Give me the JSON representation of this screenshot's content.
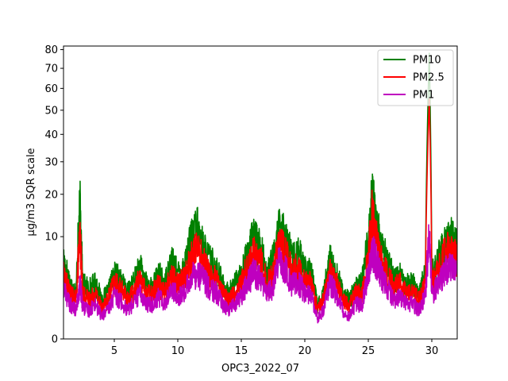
{
  "chart_data": {
    "type": "line",
    "xlabel": "OPC3_2022_07",
    "ylabel": "µg/m3 SQR scale",
    "y_scale": "sqrt",
    "xlim": [
      1,
      32
    ],
    "ylim": [
      0,
      82
    ],
    "x_ticks": [
      5,
      10,
      15,
      20,
      25,
      30
    ],
    "y_ticks": [
      0,
      10,
      20,
      30,
      40,
      50,
      60,
      70,
      80
    ],
    "legend_position": "top-right",
    "series": [
      {
        "name": "PM10",
        "color": "#008000",
        "x": [
          1.0,
          1.5,
          2.0,
          2.3,
          2.5,
          3.0,
          3.5,
          4.0,
          4.5,
          5.0,
          5.5,
          6.0,
          6.5,
          7.0,
          7.5,
          8.0,
          8.5,
          9.0,
          9.5,
          10.0,
          10.5,
          11.0,
          11.5,
          12.0,
          12.5,
          13.0,
          13.5,
          14.0,
          14.5,
          15.0,
          15.5,
          16.0,
          16.5,
          17.0,
          17.5,
          18.0,
          18.5,
          19.0,
          19.5,
          20.0,
          20.5,
          21.0,
          21.5,
          22.0,
          22.5,
          23.0,
          23.5,
          24.0,
          24.5,
          25.0,
          25.3,
          25.6,
          26.0,
          26.5,
          27.0,
          27.5,
          28.0,
          28.5,
          29.0,
          29.5,
          29.8,
          30.0,
          30.5,
          31.0,
          31.5,
          32.0
        ],
        "values": [
          6,
          3,
          2,
          17,
          3,
          2.5,
          3,
          1.5,
          2,
          4,
          3.5,
          2,
          3,
          5,
          3,
          2.5,
          4,
          3,
          6,
          4,
          5,
          9,
          12,
          8,
          6,
          5,
          3,
          2,
          3,
          4,
          7,
          10,
          8,
          4,
          6,
          12,
          10,
          6,
          7,
          5,
          4,
          1,
          2,
          6,
          4,
          2,
          1.5,
          2.5,
          3,
          9,
          19,
          15,
          8,
          6,
          3.5,
          4,
          3,
          3,
          2,
          4,
          78,
          4,
          6,
          9,
          10,
          8
        ]
      },
      {
        "name": "PM2.5",
        "color": "#ff0000",
        "x": [
          1.0,
          1.5,
          2.0,
          2.3,
          2.5,
          3.0,
          3.5,
          4.0,
          4.5,
          5.0,
          5.5,
          6.0,
          6.5,
          7.0,
          7.5,
          8.0,
          8.5,
          9.0,
          9.5,
          10.0,
          10.5,
          11.0,
          11.5,
          12.0,
          12.5,
          13.0,
          13.5,
          14.0,
          14.5,
          15.0,
          15.5,
          16.0,
          16.5,
          17.0,
          17.5,
          18.0,
          18.5,
          19.0,
          19.5,
          20.0,
          20.5,
          21.0,
          21.5,
          22.0,
          22.5,
          23.0,
          23.5,
          24.0,
          24.5,
          25.0,
          25.3,
          25.6,
          26.0,
          26.5,
          27.0,
          27.5,
          28.0,
          28.5,
          29.0,
          29.5,
          29.8,
          30.0,
          30.5,
          31.0,
          31.5,
          32.0
        ],
        "values": [
          4,
          2,
          1.5,
          10,
          2,
          1.5,
          2,
          1,
          1.5,
          3,
          2.5,
          1.5,
          2,
          3.5,
          2,
          2,
          3,
          2,
          4,
          3,
          3.5,
          6,
          8,
          6,
          4,
          3.5,
          2,
          1.5,
          2,
          3,
          5,
          7,
          6,
          3,
          4,
          9,
          7,
          4.5,
          5,
          3.5,
          3,
          0.8,
          1.5,
          4.5,
          3,
          1.5,
          1,
          2,
          2,
          6,
          15,
          10,
          6,
          4,
          2.5,
          3,
          2,
          2,
          1.5,
          3,
          55,
          3,
          4.5,
          7,
          8,
          6
        ]
      },
      {
        "name": "PM1",
        "color": "#bf00bf",
        "x": [
          1.0,
          1.5,
          2.0,
          2.3,
          2.5,
          3.0,
          3.5,
          4.0,
          4.5,
          5.0,
          5.5,
          6.0,
          6.5,
          7.0,
          7.5,
          8.0,
          8.5,
          9.0,
          9.5,
          10.0,
          10.5,
          11.0,
          11.5,
          12.0,
          12.5,
          13.0,
          13.5,
          14.0,
          14.5,
          15.0,
          15.5,
          16.0,
          16.5,
          17.0,
          17.5,
          18.0,
          18.5,
          19.0,
          19.5,
          20.0,
          20.5,
          21.0,
          21.5,
          22.0,
          22.5,
          23.0,
          23.5,
          24.0,
          24.5,
          25.0,
          25.3,
          25.6,
          26.0,
          26.5,
          27.0,
          27.5,
          28.0,
          28.5,
          29.0,
          29.5,
          29.8,
          30.0,
          30.5,
          31.0,
          31.5,
          32.0
        ],
        "values": [
          2.5,
          1.2,
          0.8,
          3,
          1,
          0.8,
          1.2,
          0.5,
          0.8,
          1.8,
          1.5,
          0.8,
          1.2,
          2,
          1.2,
          1.2,
          1.8,
          1.2,
          2.5,
          1.8,
          2,
          3.5,
          4.5,
          3.5,
          2.5,
          2.2,
          1.2,
          0.8,
          1.2,
          1.8,
          3,
          4.5,
          3.5,
          2,
          2.5,
          6,
          4.5,
          3,
          3,
          2.2,
          1.8,
          0.4,
          0.8,
          3,
          2,
          0.8,
          0.5,
          1.2,
          1.2,
          4,
          8,
          6,
          4,
          2.5,
          1.5,
          1.8,
          1.2,
          1.2,
          0.8,
          1.8,
          10,
          1.8,
          3,
          4.5,
          5,
          4
        ]
      }
    ]
  }
}
